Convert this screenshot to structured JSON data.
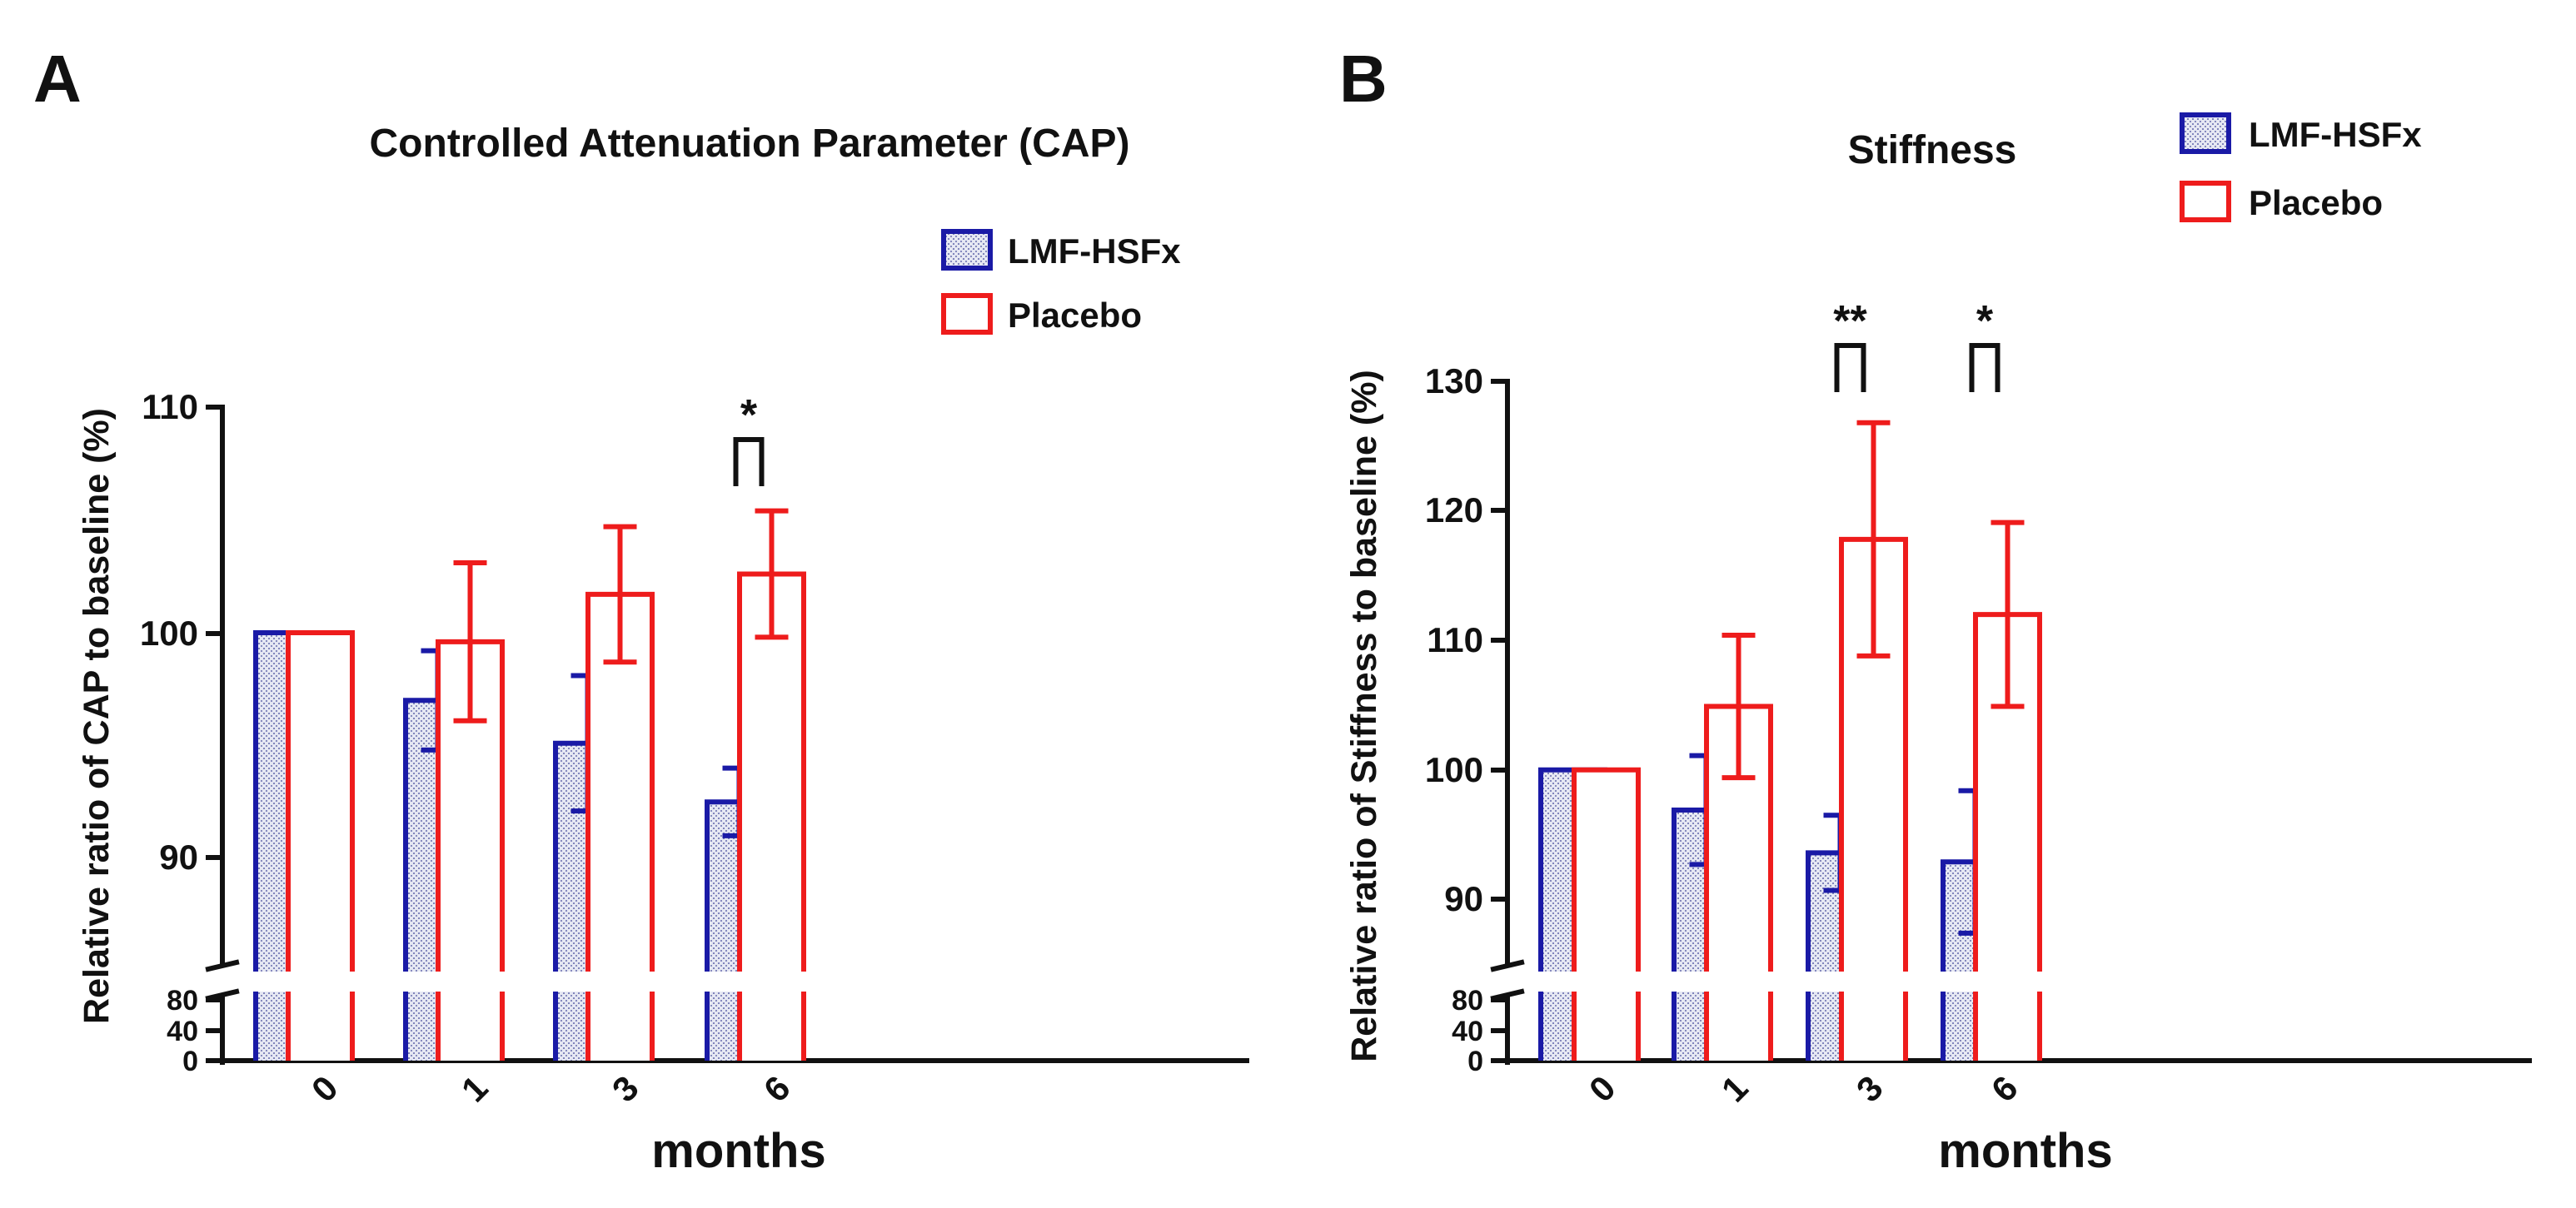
{
  "chart_data": [
    {
      "panel": "A",
      "type": "bar",
      "title": "Controlled Attenuation Parameter (CAP)",
      "xlabel": "months",
      "ylabel": "Relative ratio of CAP to baseline (%)",
      "categories": [
        "0",
        "1",
        "3",
        "6"
      ],
      "series": [
        {
          "name": "LMF-HSFx",
          "color": "#1a1aa6",
          "values": [
            100,
            97.0,
            95.1,
            92.5
          ],
          "errors": [
            0,
            2.2,
            3.0,
            1.5
          ]
        },
        {
          "name": "Placebo",
          "color": "#ee1c1c",
          "values": [
            100,
            99.6,
            101.7,
            102.6
          ],
          "errors": [
            0,
            3.5,
            3.0,
            2.8
          ]
        }
      ],
      "ylim": [
        85,
        110
      ],
      "yticks": [
        90,
        100,
        110
      ],
      "broken_axis_ticks": [
        0,
        40,
        80
      ],
      "significance": [
        {
          "category": "6",
          "label": "*"
        }
      ],
      "legend": "top-right"
    },
    {
      "panel": "B",
      "type": "bar",
      "title": "Stiffness",
      "xlabel": "months",
      "ylabel": "Relative ratio of Stiffness to baseline (%)",
      "categories": [
        "0",
        "1",
        "3",
        "6"
      ],
      "series": [
        {
          "name": "LMF-HSFx",
          "color": "#1a1aa6",
          "values": [
            100,
            96.9,
            93.6,
            92.9
          ],
          "errors": [
            0,
            4.2,
            2.9,
            5.5
          ]
        },
        {
          "name": "Placebo",
          "color": "#ee1c1c",
          "values": [
            100,
            104.9,
            117.8,
            112.0
          ],
          "errors": [
            0,
            5.5,
            9.0,
            7.1
          ]
        }
      ],
      "ylim": [
        85,
        130
      ],
      "yticks": [
        90,
        100,
        110,
        120,
        130
      ],
      "broken_axis_ticks": [
        0,
        40,
        80
      ],
      "significance": [
        {
          "category": "3",
          "label": "**"
        },
        {
          "category": "6",
          "label": "*"
        }
      ],
      "legend": "top-right"
    }
  ]
}
